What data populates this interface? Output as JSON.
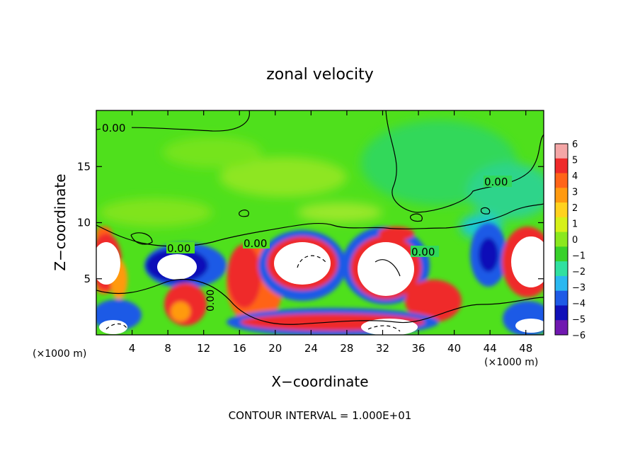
{
  "chart_data": {
    "type": "heatmap",
    "title": "zonal velocity",
    "xlabel": "X−coordinate",
    "ylabel": "Z−coordinate",
    "x_unit_left": "(×1000 m)",
    "x_unit_right": "(×1000 m)",
    "footer": "CONTOUR INTERVAL = 1.000E+01",
    "xlim": [
      0,
      50
    ],
    "ylim": [
      0,
      20
    ],
    "x_ticks": [
      4,
      8,
      12,
      16,
      20,
      24,
      28,
      32,
      36,
      40,
      44,
      48
    ],
    "y_ticks": [
      5,
      10,
      15
    ],
    "contour_labels": [
      "0.00",
      "0.00",
      "0.00",
      "0.00",
      "0.00",
      "0.00"
    ],
    "colorbar": {
      "ticks": [
        "6",
        "5",
        "4",
        "3",
        "2",
        "1",
        "0",
        "−1",
        "−2",
        "−3",
        "−4",
        "−5",
        "−6"
      ],
      "colors": [
        "#f4a6a6",
        "#ef2a2a",
        "#ff6418",
        "#ff9a10",
        "#ffd21e",
        "#d6f018",
        "#8ae81e",
        "#38d12a",
        "#30e0a0",
        "#2ab8f0",
        "#1e5ae6",
        "#1010b8",
        "#7018b0"
      ]
    }
  }
}
